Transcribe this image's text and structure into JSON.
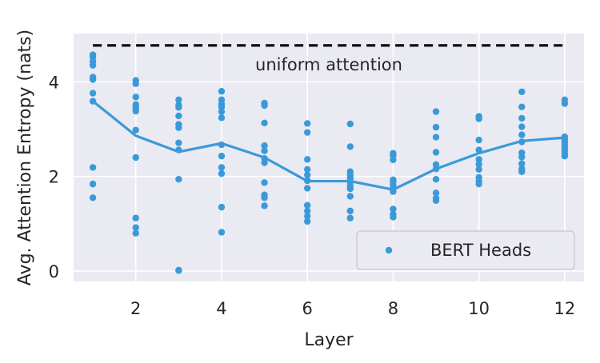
{
  "chart_data": {
    "type": "scatter",
    "xlabel": "Layer",
    "ylabel": "Avg. Attention Entropy (nats)",
    "xlim": [
      0.55,
      12.45
    ],
    "ylim": [
      -0.22,
      5.02
    ],
    "xticks": [
      2,
      4,
      6,
      8,
      10,
      12
    ],
    "yticks": [
      0,
      2,
      4
    ],
    "grid": true,
    "legend": {
      "position": "lower-right",
      "entries": [
        "BERT Heads"
      ]
    },
    "annotations": [
      {
        "text": "uniform attention",
        "x": 6.5,
        "y": 4.38
      }
    ],
    "reference_line": {
      "y": 4.77,
      "x_range": [
        1,
        12
      ],
      "style": "dashed",
      "color": "#000000"
    },
    "series": [
      {
        "name": "BERT Heads",
        "type": "scatter",
        "color": "#3a9ad9",
        "points": [
          [
            1,
            4.57
          ],
          [
            1,
            4.52
          ],
          [
            1,
            4.43
          ],
          [
            1,
            4.35
          ],
          [
            1,
            4.1
          ],
          [
            1,
            4.05
          ],
          [
            1,
            3.76
          ],
          [
            1,
            3.59
          ],
          [
            1,
            2.19
          ],
          [
            1,
            1.84
          ],
          [
            1,
            1.55
          ],
          [
            2,
            4.03
          ],
          [
            2,
            3.96
          ],
          [
            2,
            3.68
          ],
          [
            2,
            3.52
          ],
          [
            2,
            3.45
          ],
          [
            2,
            3.38
          ],
          [
            2,
            2.98
          ],
          [
            2,
            2.4
          ],
          [
            2,
            1.12
          ],
          [
            2,
            0.92
          ],
          [
            2,
            0.8
          ],
          [
            3,
            3.62
          ],
          [
            3,
            3.51
          ],
          [
            3,
            3.46
          ],
          [
            3,
            3.28
          ],
          [
            3,
            3.1
          ],
          [
            3,
            3.03
          ],
          [
            3,
            2.71
          ],
          [
            3,
            2.56
          ],
          [
            3,
            1.94
          ],
          [
            3,
            0.02
          ],
          [
            3,
            0.01
          ],
          [
            4,
            3.8
          ],
          [
            4,
            3.62
          ],
          [
            4,
            3.53
          ],
          [
            4,
            3.47
          ],
          [
            4,
            3.37
          ],
          [
            4,
            3.24
          ],
          [
            4,
            2.67
          ],
          [
            4,
            2.43
          ],
          [
            4,
            2.19
          ],
          [
            4,
            2.06
          ],
          [
            4,
            1.35
          ],
          [
            4,
            0.82
          ],
          [
            5,
            3.55
          ],
          [
            5,
            3.5
          ],
          [
            5,
            3.13
          ],
          [
            5,
            2.65
          ],
          [
            5,
            2.54
          ],
          [
            5,
            2.38
          ],
          [
            5,
            2.29
          ],
          [
            5,
            1.87
          ],
          [
            5,
            1.61
          ],
          [
            5,
            1.55
          ],
          [
            5,
            1.38
          ],
          [
            6,
            3.12
          ],
          [
            6,
            2.93
          ],
          [
            6,
            2.36
          ],
          [
            6,
            2.15
          ],
          [
            6,
            2.03
          ],
          [
            6,
            1.91
          ],
          [
            6,
            1.75
          ],
          [
            6,
            1.39
          ],
          [
            6,
            1.27
          ],
          [
            6,
            1.16
          ],
          [
            6,
            1.05
          ],
          [
            7,
            3.11
          ],
          [
            7,
            2.63
          ],
          [
            7,
            2.1
          ],
          [
            7,
            2.03
          ],
          [
            7,
            1.96
          ],
          [
            7,
            1.88
          ],
          [
            7,
            1.8
          ],
          [
            7,
            1.74
          ],
          [
            7,
            1.58
          ],
          [
            7,
            1.27
          ],
          [
            7,
            1.12
          ],
          [
            8,
            2.49
          ],
          [
            8,
            2.44
          ],
          [
            8,
            2.35
          ],
          [
            8,
            1.93
          ],
          [
            8,
            1.88
          ],
          [
            8,
            1.81
          ],
          [
            8,
            1.74
          ],
          [
            8,
            1.68
          ],
          [
            8,
            1.31
          ],
          [
            8,
            1.2
          ],
          [
            8,
            1.14
          ],
          [
            9,
            3.37
          ],
          [
            9,
            3.04
          ],
          [
            9,
            2.83
          ],
          [
            9,
            2.51
          ],
          [
            9,
            2.25
          ],
          [
            9,
            2.16
          ],
          [
            9,
            1.94
          ],
          [
            9,
            1.65
          ],
          [
            9,
            1.54
          ],
          [
            9,
            1.49
          ],
          [
            10,
            3.27
          ],
          [
            10,
            3.22
          ],
          [
            10,
            2.77
          ],
          [
            10,
            2.56
          ],
          [
            10,
            2.36
          ],
          [
            10,
            2.26
          ],
          [
            10,
            2.15
          ],
          [
            10,
            1.98
          ],
          [
            10,
            1.9
          ],
          [
            10,
            1.84
          ],
          [
            11,
            3.79
          ],
          [
            11,
            3.47
          ],
          [
            11,
            3.23
          ],
          [
            11,
            3.05
          ],
          [
            11,
            2.88
          ],
          [
            11,
            2.73
          ],
          [
            11,
            2.5
          ],
          [
            11,
            2.41
          ],
          [
            11,
            2.27
          ],
          [
            11,
            2.16
          ],
          [
            11,
            2.1
          ],
          [
            12,
            3.62
          ],
          [
            12,
            3.54
          ],
          [
            12,
            2.84
          ],
          [
            12,
            2.78
          ],
          [
            12,
            2.72
          ],
          [
            12,
            2.66
          ],
          [
            12,
            2.6
          ],
          [
            12,
            2.54
          ],
          [
            12,
            2.48
          ],
          [
            12,
            2.43
          ]
        ]
      },
      {
        "type": "line",
        "color": "#3a9ad9",
        "x": [
          1,
          2,
          3,
          4,
          5,
          6,
          7,
          8,
          9,
          10,
          11,
          12
        ],
        "y": [
          3.59,
          2.86,
          2.52,
          2.7,
          2.4,
          1.9,
          1.9,
          1.72,
          2.16,
          2.49,
          2.75,
          2.82
        ]
      }
    ]
  }
}
